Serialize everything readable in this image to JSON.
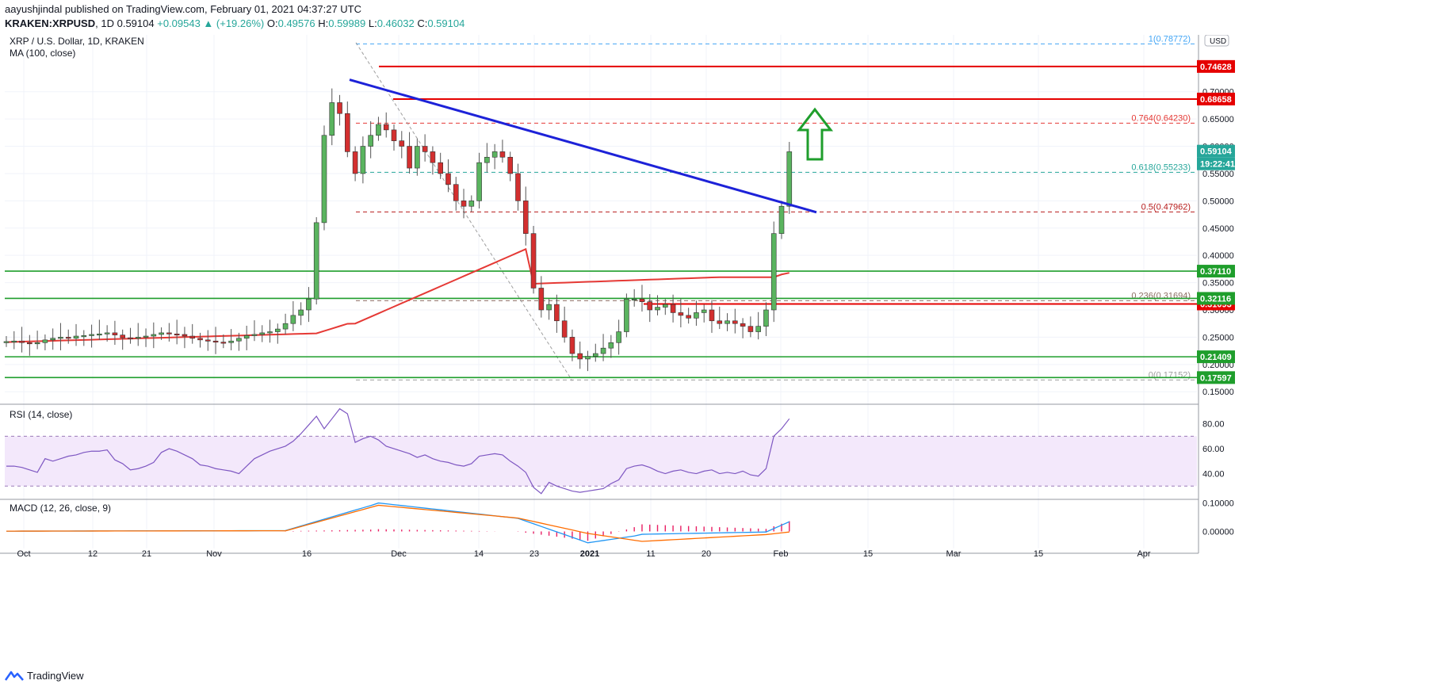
{
  "header": {
    "author": "aayushjindal",
    "published_text": "published on TradingView.com, February 01, 2021 04:37:27 UTC",
    "symbol": "KRAKEN:XRPUSD",
    "interval": "1D",
    "price": "0.59104",
    "change": "+0.09543 ▲ (+19.26%)",
    "ohlc": {
      "O": "0.49576",
      "H": "0.59989",
      "L": "0.46032",
      "C": "0.59104"
    }
  },
  "footer": {
    "brand": "TradingView"
  },
  "chart_data": [
    {
      "type": "candlestick",
      "title": "XRP / U.S. Dollar, 1D, KRAKEN",
      "study": "MA (100, close)",
      "currency": "USD",
      "ylim": [
        0.13,
        0.81
      ],
      "y_ticks": [
        "0.15000",
        "0.20000",
        "0.25000",
        "0.30000",
        "0.35000",
        "0.40000",
        "0.45000",
        "0.50000",
        "0.55000",
        "0.60000",
        "0.65000",
        "0.70000"
      ],
      "x_ticks": [
        "Oct",
        "12",
        "21",
        "Nov",
        "16",
        "Dec",
        "14",
        "23",
        "2021",
        "11",
        "20",
        "Feb",
        "15",
        "Mar",
        "15",
        "Apr"
      ],
      "candles_close_approx": [
        0.242,
        0.243,
        0.24,
        0.238,
        0.24,
        0.245,
        0.248,
        0.25,
        0.248,
        0.252,
        0.253,
        0.255,
        0.256,
        0.258,
        0.254,
        0.249,
        0.248,
        0.25,
        0.252,
        0.255,
        0.258,
        0.256,
        0.255,
        0.252,
        0.248,
        0.245,
        0.243,
        0.241,
        0.24,
        0.243,
        0.248,
        0.253,
        0.255,
        0.258,
        0.26,
        0.265,
        0.275,
        0.29,
        0.3,
        0.32,
        0.46,
        0.62,
        0.68,
        0.66,
        0.59,
        0.55,
        0.6,
        0.62,
        0.64,
        0.63,
        0.61,
        0.6,
        0.56,
        0.6,
        0.59,
        0.57,
        0.55,
        0.53,
        0.5,
        0.49,
        0.5,
        0.57,
        0.58,
        0.59,
        0.58,
        0.55,
        0.5,
        0.44,
        0.34,
        0.3,
        0.31,
        0.28,
        0.25,
        0.22,
        0.21,
        0.215,
        0.22,
        0.23,
        0.24,
        0.26,
        0.32,
        0.32,
        0.315,
        0.3,
        0.305,
        0.31,
        0.295,
        0.29,
        0.285,
        0.295,
        0.3,
        0.28,
        0.275,
        0.28,
        0.275,
        0.27,
        0.26,
        0.27,
        0.3,
        0.44,
        0.49,
        0.59
      ],
      "ma_series": [
        {
          "name": "MA (100, close)",
          "color": "#e53935"
        }
      ],
      "horizontal_levels_red": [
        "0.74628",
        "0.68658",
        "0.31093"
      ],
      "horizontal_levels_green": [
        "0.37110",
        "0.32116",
        "0.21409",
        "0.17597"
      ],
      "price_label": "0.59104",
      "timer_label": "19:22:41",
      "fibonacci": [
        {
          "label": "1(0.78772)",
          "value": 0.78772
        },
        {
          "label": "0.764(0.64230)",
          "value": 0.6423
        },
        {
          "label": "0.618(0.55233)",
          "value": 0.55233
        },
        {
          "label": "0.5(0.47962)",
          "value": 0.47962
        },
        {
          "label": "0.236(0.31694)",
          "value": 0.31694
        },
        {
          "label": "0(0.17152)",
          "value": 0.17152
        }
      ],
      "trendline": {
        "color": "#1d22d8",
        "from": {
          "date": "Nov 23",
          "value": 0.72
        },
        "to": {
          "date": "Feb 07",
          "value": 0.48
        }
      },
      "annotation": "up-arrow-icon"
    },
    {
      "type": "line",
      "title": "RSI (14, close)",
      "ylim": [
        20,
        95
      ],
      "y_ticks": [
        "80.00",
        "60.00",
        "40.00"
      ],
      "band": [
        30,
        70
      ],
      "values_approx": [
        46,
        46,
        45,
        43,
        41,
        52,
        50,
        52,
        54,
        55,
        57,
        58,
        58,
        59,
        51,
        48,
        43,
        44,
        46,
        49,
        57,
        60,
        58,
        55,
        52,
        47,
        46,
        44,
        43,
        42,
        40,
        46,
        52,
        55,
        58,
        60,
        62,
        66,
        72,
        79,
        86,
        76,
        84,
        92,
        88,
        65,
        68,
        70,
        67,
        62,
        60,
        58,
        56,
        53,
        55,
        52,
        50,
        49,
        47,
        46,
        48,
        54,
        55,
        56,
        55,
        50,
        46,
        41,
        29,
        24,
        33,
        30,
        28,
        26,
        25,
        26,
        27,
        28,
        32,
        35,
        44,
        46,
        47,
        45,
        42,
        40,
        42,
        43,
        41,
        40,
        42,
        43,
        40,
        41,
        40,
        42,
        39,
        38,
        44,
        70,
        76,
        84
      ],
      "color": "#7e57c2"
    },
    {
      "type": "line",
      "title": "MACD (12, 26, close, 9)",
      "ylim": [
        -0.06,
        0.11
      ],
      "y_ticks": [
        "0.10000",
        "0.00000"
      ],
      "series": [
        {
          "name": "MACD",
          "color": "#2196f3"
        },
        {
          "name": "Signal",
          "color": "#ff6d00"
        }
      ],
      "histogram_color": "#e91e63"
    }
  ]
}
